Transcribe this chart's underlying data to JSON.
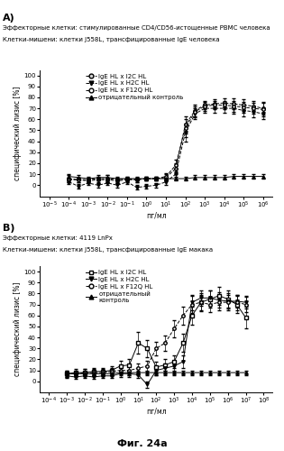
{
  "panel_A": {
    "label": "A)",
    "title_line1": "Эффекторные клетки: стимулированные CD4/CD56-истощенные PBMC человека",
    "title_line2": "Клетки-мишени: клетки J558L, трансфицированные IgE человека",
    "xlabel": "пг/мл",
    "ylabel": "специфический лизис [%]",
    "ylim": [
      -10,
      105
    ],
    "yticks": [
      0,
      10,
      20,
      30,
      40,
      50,
      60,
      70,
      80,
      90,
      100
    ],
    "xtick_labels": [
      "10-5",
      "10-4",
      "10-3",
      "10-2",
      "10-1",
      "100",
      "101",
      "102",
      "103",
      "104",
      "105",
      "106"
    ],
    "xtick_vals": [
      -5,
      -4,
      -3,
      -2,
      -1,
      0,
      1,
      2,
      3,
      4,
      5,
      6
    ],
    "xlim": [
      -5.5,
      6.5
    ],
    "series": [
      {
        "label": "IgE HL x I2C HL",
        "marker": "o",
        "marker_fill": "gray",
        "line_style": "--",
        "color": "black",
        "x": [
          -4,
          -3.5,
          -3,
          -2.5,
          -2,
          -1.5,
          -1,
          -0.5,
          0,
          0.5,
          1,
          1.5,
          2,
          2.5,
          3,
          3.5,
          4,
          4.5,
          5,
          5.5,
          6
        ],
        "y": [
          5,
          5,
          4,
          5,
          5,
          4,
          5,
          5,
          6,
          6,
          7,
          15,
          55,
          68,
          73,
          74,
          75,
          74,
          73,
          72,
          70
        ],
        "yerr": [
          2,
          2,
          2,
          2,
          2,
          2,
          2,
          2,
          2,
          2,
          3,
          5,
          8,
          5,
          4,
          4,
          4,
          5,
          5,
          5,
          6
        ]
      },
      {
        "label": "IgE HL x H2C HL",
        "marker": "v",
        "marker_fill": "black",
        "line_style": "--",
        "color": "black",
        "x": [
          -4,
          -3.5,
          -3,
          -2.5,
          -2,
          -1.5,
          -1,
          -0.5,
          0,
          0.5,
          1,
          1.5,
          2,
          2.5,
          3,
          3.5,
          4,
          4.5,
          5,
          5.5,
          6
        ],
        "y": [
          3,
          -1,
          2,
          0,
          2,
          0,
          3,
          -2,
          -1,
          0,
          3,
          10,
          48,
          65,
          70,
          70,
          70,
          70,
          68,
          67,
          65
        ],
        "yerr": [
          2,
          2,
          2,
          2,
          2,
          2,
          2,
          2,
          2,
          2,
          3,
          5,
          8,
          5,
          4,
          4,
          4,
          5,
          5,
          5,
          5
        ]
      },
      {
        "label": "IgE HL x F12Q HL",
        "marker": "o",
        "marker_fill": "white",
        "line_style": "--",
        "color": "black",
        "x": [
          -4,
          -3.5,
          -3,
          -2.5,
          -2,
          -1.5,
          -1,
          -0.5,
          0,
          0.5,
          1,
          1.5,
          2,
          2.5,
          3,
          3.5,
          4,
          4.5,
          5,
          5.5,
          6
        ],
        "y": [
          6,
          5,
          5,
          6,
          6,
          5,
          6,
          5,
          6,
          6,
          8,
          18,
          52,
          67,
          72,
          73,
          73,
          72,
          71,
          70,
          69
        ],
        "yerr": [
          3,
          2,
          2,
          2,
          3,
          2,
          2,
          2,
          2,
          2,
          3,
          5,
          8,
          5,
          4,
          4,
          4,
          5,
          5,
          5,
          6
        ]
      },
      {
        "label": "отрицательный контроль",
        "marker": "^",
        "marker_fill": "black",
        "line_style": "-",
        "color": "black",
        "x": [
          -4,
          -3.5,
          -3,
          -2.5,
          -2,
          -1.5,
          -1,
          -0.5,
          0,
          0.5,
          1,
          1.5,
          2,
          2.5,
          3,
          3.5,
          4,
          4.5,
          5,
          5.5,
          6
        ],
        "y": [
          8,
          7,
          6,
          7,
          7,
          6,
          6,
          6,
          6,
          6,
          6,
          6,
          6,
          7,
          7,
          7,
          7,
          8,
          8,
          8,
          8
        ],
        "yerr": [
          2,
          2,
          2,
          2,
          2,
          2,
          2,
          2,
          2,
          2,
          2,
          2,
          2,
          2,
          2,
          2,
          2,
          2,
          2,
          2,
          2
        ]
      }
    ]
  },
  "panel_B": {
    "label": "B)",
    "title_line1": "Эффекторные клетки: 4119 LnPx",
    "title_line2": "Клетки-мишени: клетки J558L, трансфицированные IgE макака",
    "xlabel": "пг/мл",
    "ylabel": "специфический лизис [%]",
    "ylim": [
      -10,
      105
    ],
    "yticks": [
      0,
      10,
      20,
      30,
      40,
      50,
      60,
      70,
      80,
      90,
      100
    ],
    "xtick_labels": [
      "10-4",
      "10-3",
      "10-2",
      "10-1",
      "100",
      "101",
      "102",
      "103",
      "104",
      "105",
      "106",
      "107",
      "108"
    ],
    "xtick_vals": [
      -4,
      -3,
      -2,
      -1,
      0,
      1,
      2,
      3,
      4,
      5,
      6,
      7,
      8
    ],
    "xlim": [
      -4.5,
      8.5
    ],
    "series": [
      {
        "label": "IgE HL x I2C HL",
        "marker": "s",
        "marker_fill": "white",
        "line_style": "-",
        "color": "black",
        "x": [
          -3,
          -2.5,
          -2,
          -1.5,
          -1,
          -0.5,
          0,
          0.5,
          1,
          1.5,
          2,
          2.5,
          3,
          3.5,
          4,
          4.5,
          5,
          5.5,
          6,
          6.5,
          7
        ],
        "y": [
          7,
          8,
          8,
          9,
          9,
          10,
          14,
          15,
          35,
          30,
          13,
          15,
          18,
          35,
          60,
          72,
          75,
          78,
          75,
          70,
          58
        ],
        "yerr": [
          3,
          3,
          3,
          3,
          3,
          4,
          5,
          5,
          10,
          8,
          5,
          5,
          6,
          8,
          8,
          8,
          8,
          8,
          8,
          8,
          10
        ]
      },
      {
        "label": "IgE HL x H2C HL",
        "marker": "v",
        "marker_fill": "black",
        "line_style": "-",
        "color": "black",
        "x": [
          -3,
          -2.5,
          -2,
          -1.5,
          -1,
          -0.5,
          0,
          0.5,
          1,
          1.5,
          2,
          2.5,
          3,
          3.5,
          4,
          4.5,
          5,
          5.5,
          6,
          6.5,
          7
        ],
        "y": [
          5,
          4,
          5,
          4,
          5,
          5,
          7,
          7,
          6,
          -3,
          10,
          12,
          14,
          18,
          72,
          76,
          76,
          74,
          73,
          73,
          72
        ],
        "yerr": [
          2,
          2,
          2,
          2,
          2,
          2,
          3,
          3,
          3,
          3,
          4,
          4,
          5,
          6,
          7,
          7,
          7,
          7,
          7,
          6,
          6
        ]
      },
      {
        "label": "IgE HL x F12Q HL",
        "marker": "o",
        "marker_fill": "white",
        "line_style": "--",
        "color": "black",
        "x": [
          -3,
          -2.5,
          -2,
          -1.5,
          -1,
          -0.5,
          0,
          0.5,
          1,
          1.5,
          2,
          2.5,
          3,
          3.5,
          4,
          4.5,
          5,
          5.5,
          6,
          6.5,
          7
        ],
        "y": [
          7,
          7,
          8,
          8,
          8,
          9,
          10,
          10,
          12,
          14,
          30,
          35,
          48,
          60,
          70,
          72,
          70,
          72,
          72,
          72,
          70
        ],
        "yerr": [
          3,
          3,
          3,
          3,
          3,
          3,
          3,
          4,
          4,
          5,
          6,
          7,
          8,
          8,
          8,
          7,
          7,
          7,
          7,
          7,
          7
        ]
      },
      {
        "label": "отрицательный\nконтроль",
        "marker": "^",
        "marker_fill": "black",
        "line_style": "-",
        "color": "black",
        "x": [
          -3,
          -2.5,
          -2,
          -1.5,
          -1,
          -0.5,
          0,
          0.5,
          1,
          1.5,
          2,
          2.5,
          3,
          3.5,
          4,
          4.5,
          5,
          5.5,
          6,
          6.5,
          7
        ],
        "y": [
          7,
          7,
          7,
          7,
          7,
          7,
          8,
          8,
          8,
          8,
          8,
          8,
          8,
          8,
          8,
          8,
          8,
          8,
          8,
          8,
          8
        ],
        "yerr": [
          2,
          2,
          2,
          2,
          2,
          2,
          2,
          2,
          2,
          2,
          2,
          2,
          2,
          2,
          2,
          2,
          2,
          2,
          2,
          2,
          2
        ]
      }
    ]
  },
  "fig_label": "Фиг. 24а",
  "background_color": "#ffffff",
  "fontsize_panel_label": 8,
  "fontsize_title": 5.0,
  "fontsize_axis_label": 5.5,
  "fontsize_tick": 5.0,
  "fontsize_legend": 5.0,
  "fontsize_figlabel": 8
}
